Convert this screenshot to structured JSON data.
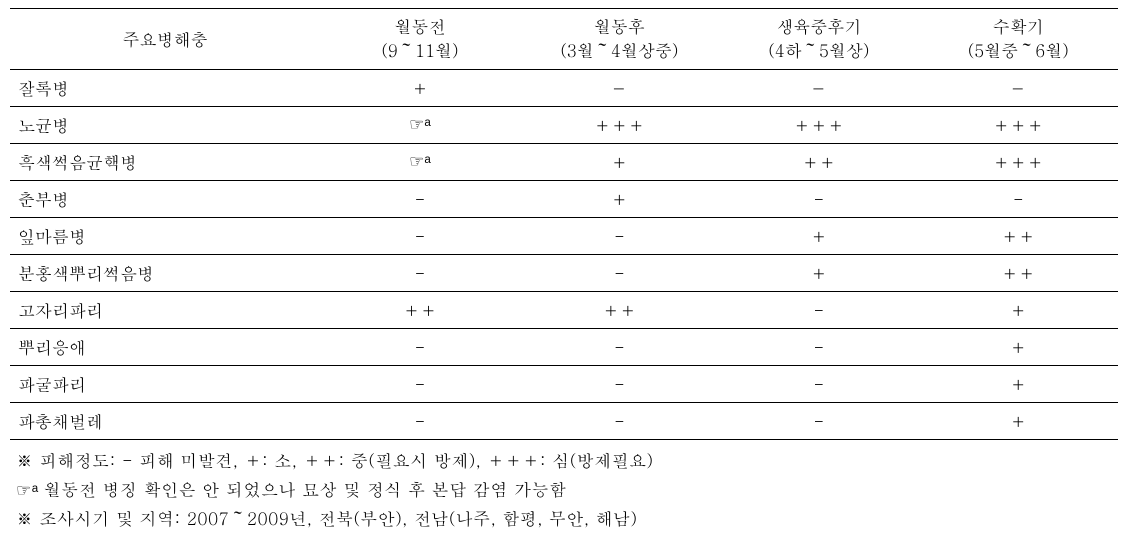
{
  "table": {
    "headers": {
      "pest": "주요병해충",
      "col1_line1": "월동전",
      "col1_line2": "(9～11월)",
      "col2_line1": "월동후",
      "col2_line2": "(3월～4월상중)",
      "col3_line1": "생육중후기",
      "col3_line2": "(4하～5월상)",
      "col4_line1": "수확기",
      "col4_line2": "(5월중～6월)"
    },
    "rows": [
      {
        "pest": "잘록병",
        "c1": "＋",
        "c2": "－",
        "c3": "－",
        "c4": "－",
        "c1_hand": false
      },
      {
        "pest": "노균병",
        "c1": "☞ᵃ",
        "c2": "＋＋＋",
        "c3": "＋＋＋",
        "c4": "＋＋＋",
        "c1_hand": true
      },
      {
        "pest": "흑색썩음균핵병",
        "c1": "☞ᵃ",
        "c2": "＋",
        "c3": "＋＋",
        "c4": "＋＋＋",
        "c1_hand": true
      },
      {
        "pest": "춘부병",
        "c1": "-",
        "c2": "＋",
        "c3": "-",
        "c4": "-",
        "c1_hand": false
      },
      {
        "pest": "잎마름병",
        "c1": "-",
        "c2": "-",
        "c3": "＋",
        "c4": "＋＋",
        "c1_hand": false
      },
      {
        "pest": "분홍색뿌리썩음병",
        "c1": "-",
        "c2": "-",
        "c3": "＋",
        "c4": "＋＋",
        "c1_hand": false
      },
      {
        "pest": "고자리파리",
        "c1": "＋＋",
        "c2": "＋＋",
        "c3": "-",
        "c4": "＋",
        "c1_hand": false
      },
      {
        "pest": "뿌리응애",
        "c1": "-",
        "c2": "-",
        "c3": "-",
        "c4": "＋",
        "c1_hand": false
      },
      {
        "pest": "파굴파리",
        "c1": "-",
        "c2": "-",
        "c3": "-",
        "c4": "＋",
        "c1_hand": false
      },
      {
        "pest": "파총채벌레",
        "c1": "-",
        "c2": "-",
        "c3": "-",
        "c4": "＋",
        "c1_hand": false
      }
    ]
  },
  "notes": {
    "note1": "※  피해정도:  - 피해 미발견, ＋: 소, ＋＋: 중(필요시 방제), ＋＋＋: 심(방제필요)",
    "note2_prefix": "☞ᵃ ",
    "note2_text": "월동전 병징 확인은 안 되었으나 묘상 및 정식 후 본답 감염 가능함",
    "note3": "※  조사시기 및 지역: 2007～2009년, 전북(부안), 전남(나주, 함평, 무안, 해남)"
  }
}
